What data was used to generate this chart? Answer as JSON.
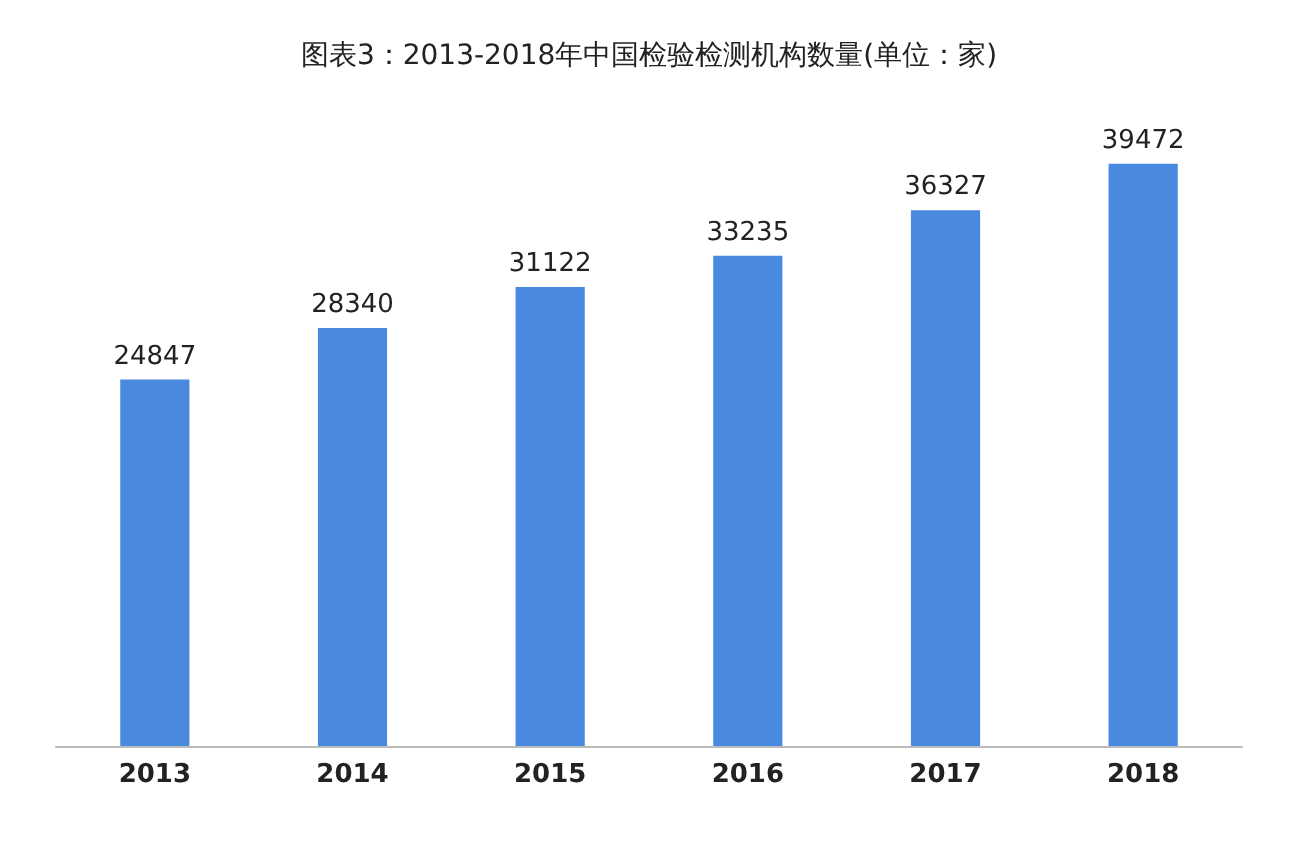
{
  "chart_data": {
    "type": "bar",
    "title": "图表3：2013-2018年中国检验检测机构数量(单位：家)",
    "categories": [
      "2013",
      "2014",
      "2015",
      "2016",
      "2017",
      "2018"
    ],
    "values": [
      24847,
      28340,
      31122,
      33235,
      36327,
      39472
    ],
    "color": "#4a89e0",
    "data_labels": true,
    "tick_labels": "x"
  }
}
